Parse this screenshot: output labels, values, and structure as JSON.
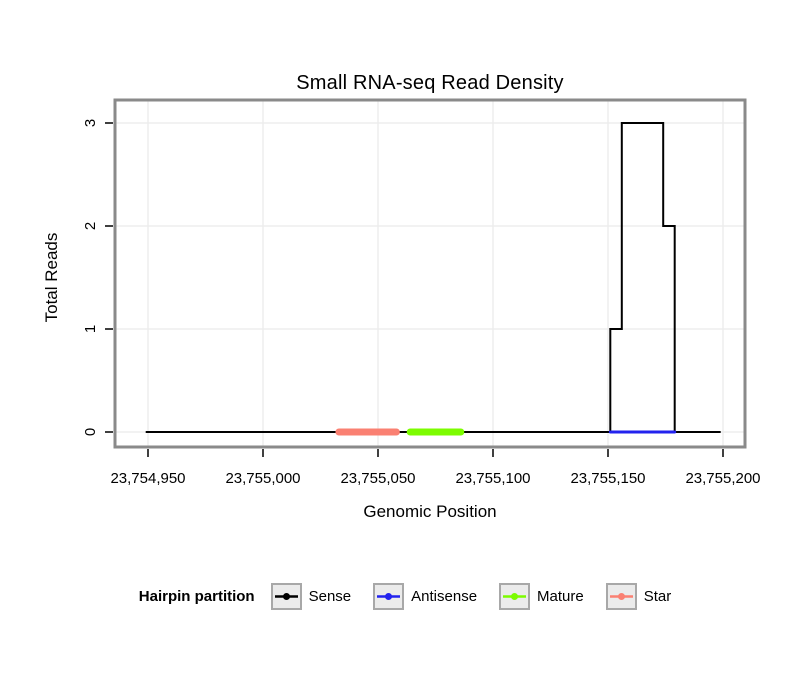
{
  "chart_data": {
    "type": "line",
    "title": "Small RNA-seq Read Density",
    "xlabel": "Genomic Position",
    "ylabel": "Total Reads",
    "xlim": [
      23754936,
      23755210
    ],
    "ylim": [
      0,
      3
    ],
    "grid": true,
    "legend_position": "bottom",
    "legend_title": "Hairpin partition",
    "x_ticks": [
      23754950,
      23755000,
      23755050,
      23755100,
      23755150,
      23755200
    ],
    "x_tick_labels": [
      "23,754,950",
      "23,755,000",
      "23,755,050",
      "23,755,100",
      "23,755,150",
      "23,755,200"
    ],
    "y_ticks": [
      0,
      1,
      2,
      3
    ],
    "y_tick_labels": [
      "0",
      "1",
      "2",
      "3"
    ],
    "colors": {
      "panel_border": "#8a8a8a",
      "gridline": "#ededed",
      "axis_text": "#000000"
    },
    "series": [
      {
        "name": "Sense",
        "color": "#000000",
        "line_width": 2,
        "type": "step",
        "points": [
          [
            23754949,
            0
          ],
          [
            23755151,
            0
          ],
          [
            23755151,
            1
          ],
          [
            23755156,
            1
          ],
          [
            23755156,
            3
          ],
          [
            23755174,
            3
          ],
          [
            23755174,
            2
          ],
          [
            23755179,
            2
          ],
          [
            23755179,
            0
          ],
          [
            23755199,
            0
          ]
        ]
      },
      {
        "name": "Antisense",
        "color": "#2222EE",
        "line_width": 3,
        "type": "segment",
        "y": 0,
        "x_from": 23755151,
        "x_to": 23755179
      },
      {
        "name": "Mature",
        "color": "#7CFC00",
        "line_width": 7,
        "type": "segment",
        "y": 0,
        "x_from": 23755064,
        "x_to": 23755086
      },
      {
        "name": "Star",
        "color": "#FA8072",
        "line_width": 7,
        "type": "segment",
        "y": 0,
        "x_from": 23755033,
        "x_to": 23755058
      }
    ]
  }
}
